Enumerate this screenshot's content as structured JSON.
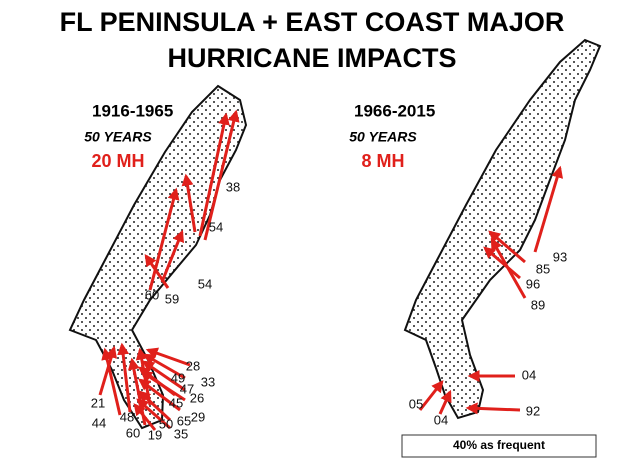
{
  "title_lines": [
    "FL PENINSULA + EAST COAST MAJOR",
    "HURRICANE IMPACTS"
  ],
  "panels": [
    {
      "period": "1916-1965",
      "span": "50 YEARS",
      "count": "20 MH",
      "labels": [
        "38",
        "54",
        "54",
        "60",
        "59",
        "28",
        "49",
        "33",
        "47",
        "26",
        "45",
        "29",
        "65",
        "50",
        "35",
        "19",
        "60",
        "48",
        "44",
        "21"
      ]
    },
    {
      "period": "1966-2015",
      "span": "50 YEARS",
      "count": "8 MH",
      "labels": [
        "93",
        "85",
        "96",
        "89",
        "04",
        "05",
        "04",
        "92"
      ]
    }
  ],
  "note": "40% as frequent"
}
